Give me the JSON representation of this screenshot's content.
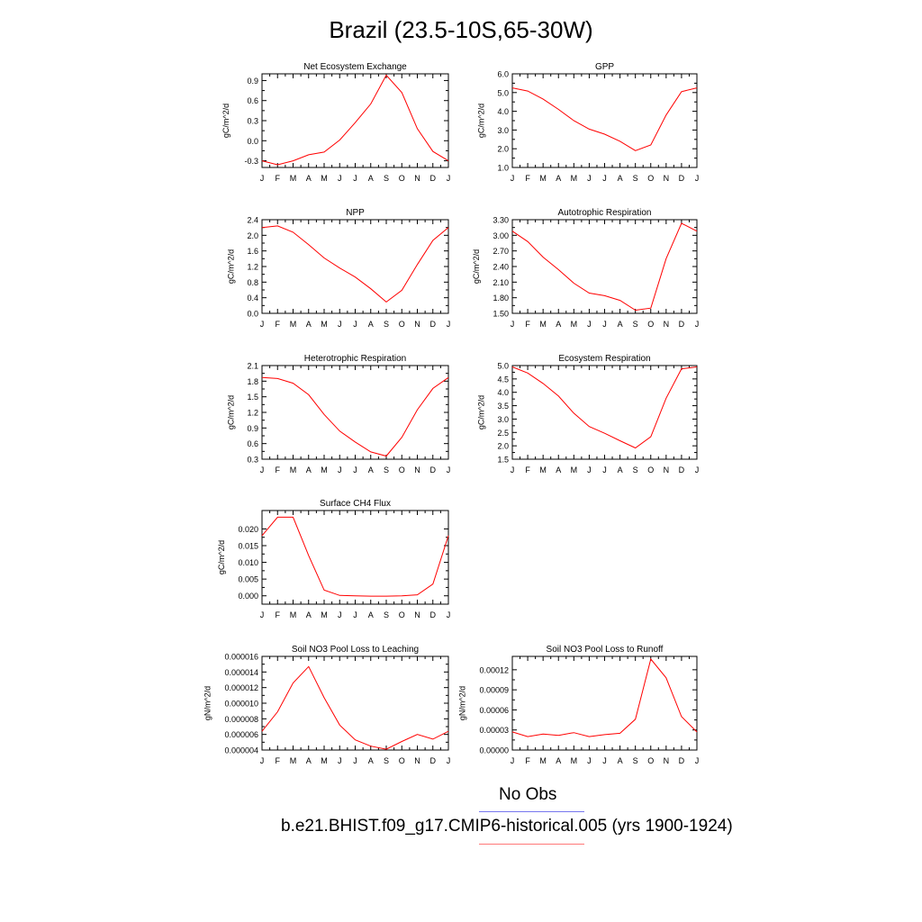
{
  "title": "Brazil (23.5-10S,65-30W)",
  "months": [
    "J",
    "F",
    "M",
    "A",
    "M",
    "J",
    "J",
    "A",
    "S",
    "O",
    "N",
    "D",
    "J"
  ],
  "line_color": "#ff0000",
  "obs_color": "#7777ee",
  "legend": {
    "obs_label": "No Obs",
    "model_label": "b.e21.BHIST.f09_g17.CMIP6-historical.005 (yrs 1900-1924)"
  },
  "chart_data": [
    {
      "id": "nee",
      "type": "line",
      "title": "Net Ecosystem Exchange",
      "ylabel": "gC/m^2/d",
      "ylim": [
        -0.4,
        1.0
      ],
      "yticks": [
        -0.3,
        0.0,
        0.3,
        0.6,
        0.9
      ],
      "ytick_labels": [
        "-0.3",
        "0.0",
        "0.3",
        "0.6",
        "0.9"
      ],
      "values": [
        -0.3,
        -0.36,
        -0.3,
        -0.21,
        -0.17,
        0.01,
        0.27,
        0.55,
        0.98,
        0.72,
        0.18,
        -0.16,
        -0.3
      ]
    },
    {
      "id": "gpp",
      "type": "line",
      "title": "GPP",
      "ylabel": "gC/m^2/d",
      "ylim": [
        1.0,
        6.0
      ],
      "yticks": [
        1.0,
        2.0,
        3.0,
        4.0,
        5.0,
        6.0
      ],
      "ytick_labels": [
        "1.0",
        "2.0",
        "3.0",
        "4.0",
        "5.0",
        "6.0"
      ],
      "values": [
        5.25,
        5.08,
        4.65,
        4.1,
        3.5,
        3.05,
        2.78,
        2.4,
        1.9,
        2.2,
        3.8,
        5.05,
        5.25
      ]
    },
    {
      "id": "npp",
      "type": "line",
      "title": "NPP",
      "ylabel": "gC/m^2/d",
      "ylim": [
        0.0,
        2.4
      ],
      "yticks": [
        0.0,
        0.4,
        0.8,
        1.2,
        1.6,
        2.0,
        2.4
      ],
      "ytick_labels": [
        "0.0",
        "0.4",
        "0.8",
        "1.2",
        "1.6",
        "2.0",
        "2.4"
      ],
      "values": [
        2.2,
        2.24,
        2.08,
        1.76,
        1.42,
        1.16,
        0.93,
        0.63,
        0.29,
        0.59,
        1.25,
        1.87,
        2.2
      ]
    },
    {
      "id": "ar",
      "type": "line",
      "title": "Autotrophic Respiration",
      "ylabel": "gC/m^2/d",
      "ylim": [
        1.5,
        3.3
      ],
      "yticks": [
        1.5,
        1.8,
        2.1,
        2.4,
        2.7,
        3.0,
        3.3
      ],
      "ytick_labels": [
        "1.50",
        "1.80",
        "2.10",
        "2.40",
        "2.70",
        "3.00",
        "3.30"
      ],
      "values": [
        3.08,
        2.88,
        2.58,
        2.34,
        2.08,
        1.89,
        1.84,
        1.75,
        1.56,
        1.6,
        2.55,
        3.23,
        3.08
      ]
    },
    {
      "id": "hr",
      "type": "line",
      "title": "Heterotrophic Respiration",
      "ylabel": "gC/m^2/d",
      "ylim": [
        0.3,
        2.1
      ],
      "yticks": [
        0.3,
        0.6,
        0.9,
        1.2,
        1.5,
        1.8,
        2.1
      ],
      "ytick_labels": [
        "0.3",
        "0.6",
        "0.9",
        "1.2",
        "1.5",
        "1.8",
        "2.1"
      ],
      "values": [
        1.87,
        1.85,
        1.76,
        1.54,
        1.16,
        0.84,
        0.63,
        0.44,
        0.36,
        0.72,
        1.25,
        1.66,
        1.87
      ]
    },
    {
      "id": "er",
      "type": "line",
      "title": "Ecosystem Respiration",
      "ylabel": "gC/m^2/d",
      "ylim": [
        1.5,
        5.0
      ],
      "yticks": [
        1.5,
        2.0,
        2.5,
        3.0,
        3.5,
        4.0,
        4.5,
        5.0
      ],
      "ytick_labels": [
        "1.5",
        "2.0",
        "2.5",
        "3.0",
        "3.5",
        "4.0",
        "4.5",
        "5.0"
      ],
      "values": [
        4.95,
        4.72,
        4.33,
        3.86,
        3.22,
        2.72,
        2.47,
        2.19,
        1.92,
        2.34,
        3.78,
        4.88,
        4.95
      ]
    },
    {
      "id": "ch4",
      "type": "line",
      "title": "Surface CH4 Flux",
      "ylabel": "gC/m^2/d",
      "ylim": [
        -0.0025,
        0.0255
      ],
      "yticks": [
        0.0,
        0.005,
        0.01,
        0.015,
        0.02
      ],
      "ytick_labels": [
        "0.000",
        "0.005",
        "0.010",
        "0.015",
        "0.020"
      ],
      "values": [
        0.018,
        0.0235,
        0.0235,
        0.012,
        0.0017,
        0.0001,
        0.0,
        -0.0001,
        -0.0001,
        0.0,
        0.0003,
        0.0035,
        0.018
      ]
    },
    {
      "id": "leach",
      "type": "line",
      "title": "Soil NO3 Pool Loss to Leaching",
      "ylabel": "gN/m^2/d",
      "ylim": [
        4e-06,
        1.6e-05
      ],
      "yticks": [
        4e-06,
        6e-06,
        8e-06,
        1e-05,
        1.2e-05,
        1.4e-05,
        1.6e-05
      ],
      "ytick_labels": [
        "0.000004",
        "0.000006",
        "0.000008",
        "0.000010",
        "0.000012",
        "0.000014",
        "0.000016"
      ],
      "values": [
        6.4e-06,
        8.9e-06,
        1.26e-05,
        1.47e-05,
        1.07e-05,
        7.2e-06,
        5.3e-06,
        4.5e-06,
        4.1e-06,
        5.1e-06,
        6e-06,
        5.4e-06,
        6.4e-06
      ]
    },
    {
      "id": "runoff",
      "type": "line",
      "title": "Soil NO3 Pool Loss to Runoff",
      "ylabel": "gN/m^2/d",
      "ylim": [
        0.0,
        0.00014
      ],
      "yticks": [
        0.0,
        3e-05,
        6e-05,
        9e-05,
        0.00012
      ],
      "ytick_labels": [
        "0.00000",
        "0.00003",
        "0.00006",
        "0.00009",
        "0.00012"
      ],
      "values": [
        2.7e-05,
        2e-05,
        2.4e-05,
        2.2e-05,
        2.6e-05,
        2e-05,
        2.3e-05,
        2.5e-05,
        4.6e-05,
        0.000136,
        0.000108,
        5e-05,
        2.7e-05
      ]
    }
  ]
}
